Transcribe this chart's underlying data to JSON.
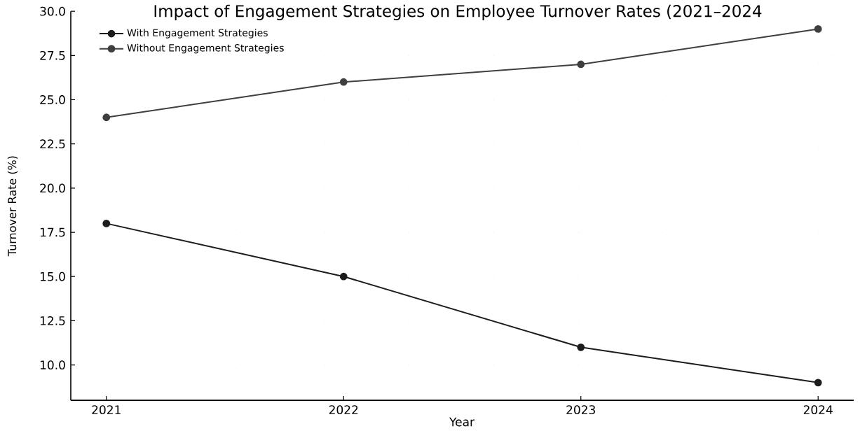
{
  "chart_data": {
    "type": "line",
    "title": "Impact of Engagement Strategies on Employee Turnover Rates (2021–2024",
    "xlabel": "Year",
    "ylabel": "Turnover Rate (%)",
    "x": [
      2021,
      2022,
      2023,
      2024
    ],
    "series": [
      {
        "name": "With Engagement Strategies",
        "color": "#1c1c1c",
        "values": [
          18,
          15,
          11,
          9
        ]
      },
      {
        "name": "Without Engagement Strategies",
        "color": "#3f3f3f",
        "values": [
          24,
          26,
          27,
          29
        ]
      }
    ],
    "xlim": [
      2020.85,
      2024.15
    ],
    "ylim": [
      8,
      30
    ],
    "xticks": [
      2021,
      2022,
      2023,
      2024
    ],
    "yticks": [
      {
        "value": 10,
        "label": "10.0"
      },
      {
        "value": 12.5,
        "label": "12.5"
      },
      {
        "value": 15,
        "label": "15.0"
      },
      {
        "value": 17.5,
        "label": "17.5"
      },
      {
        "value": 20,
        "label": "20.0"
      },
      {
        "value": 22.5,
        "label": "22.5"
      },
      {
        "value": 25,
        "label": "25.0"
      },
      {
        "value": 27.5,
        "label": "27.5"
      },
      {
        "value": 30,
        "label": "30.0"
      }
    ],
    "grid": true,
    "legend": "top left",
    "marker": "circle",
    "line_style": "solid"
  }
}
